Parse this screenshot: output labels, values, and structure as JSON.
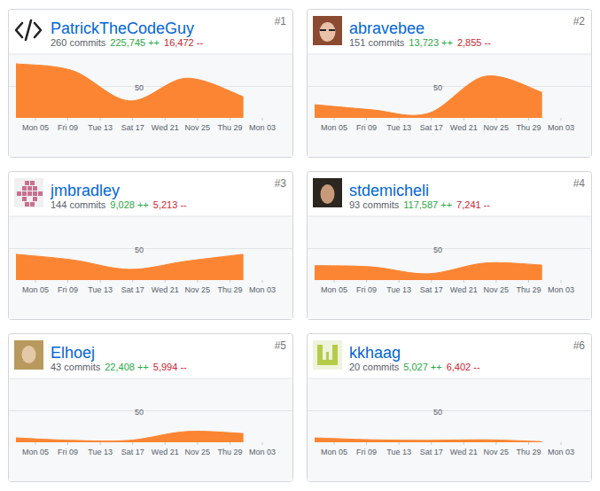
{
  "chart_data": [
    {
      "type": "area",
      "title": "PatrickTheCodeGuy",
      "rank": {
        "value": 1,
        "label": "#1"
      },
      "stats": [
        {
          "value": 260,
          "label": "260 commits"
        },
        {
          "value": 225745,
          "label": "225,745 ++"
        },
        {
          "value": 16472,
          "label": "16,472 --"
        }
      ],
      "color": "#fb8532",
      "x": [
        -2.4,
        4.6,
        11.6,
        18.6,
        25.6
      ],
      "values": [
        86,
        75,
        27,
        63,
        34
      ],
      "xlim": [
        -2.4,
        30.4
      ],
      "xticks": [
        {
          "value": 0,
          "label": "Mon 05"
        },
        {
          "value": 4,
          "label": "Fri 09"
        },
        {
          "value": 8,
          "label": "Tue 13"
        },
        {
          "value": 12,
          "label": "Sat 17"
        },
        {
          "value": 16,
          "label": "Wed 21"
        },
        {
          "value": 20,
          "label": "Nov 25"
        },
        {
          "value": 24,
          "label": "Thu 29"
        },
        {
          "value": 28,
          "label": "Mon 03"
        }
      ],
      "ylim": [
        0,
        100
      ],
      "yticks": [
        50
      ],
      "grid": true
    },
    {
      "type": "area",
      "title": "abravebee",
      "rank": {
        "value": 2,
        "label": "#2"
      },
      "stats": [
        {
          "value": 151,
          "label": "151 commits"
        },
        {
          "value": 13723,
          "label": "13,723 ++"
        },
        {
          "value": 2855,
          "label": "2,855 --"
        }
      ],
      "color": "#fb8532",
      "x": [
        -2.4,
        4.6,
        11.6,
        18.6,
        25.6
      ],
      "values": [
        21,
        13,
        7,
        66,
        41
      ],
      "xlim": [
        -2.4,
        30.4
      ],
      "xticks": [
        {
          "value": 0,
          "label": "Mon 05"
        },
        {
          "value": 4,
          "label": "Fri 09"
        },
        {
          "value": 8,
          "label": "Tue 13"
        },
        {
          "value": 12,
          "label": "Sat 17"
        },
        {
          "value": 16,
          "label": "Wed 21"
        },
        {
          "value": 20,
          "label": "Nov 25"
        },
        {
          "value": 24,
          "label": "Thu 29"
        },
        {
          "value": 28,
          "label": "Mon 03"
        }
      ],
      "ylim": [
        0,
        100
      ],
      "yticks": [
        50
      ],
      "grid": true
    },
    {
      "type": "area",
      "title": "jmbradley",
      "rank": {
        "value": 3,
        "label": "#3"
      },
      "stats": [
        {
          "value": 144,
          "label": "144 commits"
        },
        {
          "value": 9028,
          "label": "9,028 ++"
        },
        {
          "value": 5213,
          "label": "5,213 --"
        }
      ],
      "color": "#fb8532",
      "x": [
        -2.4,
        4.6,
        11.6,
        18.6,
        25.6
      ],
      "values": [
        41,
        32,
        17,
        30,
        41
      ],
      "xlim": [
        -2.4,
        30.4
      ],
      "xticks": [
        {
          "value": 0,
          "label": "Mon 05"
        },
        {
          "value": 4,
          "label": "Fri 09"
        },
        {
          "value": 8,
          "label": "Tue 13"
        },
        {
          "value": 12,
          "label": "Sat 17"
        },
        {
          "value": 16,
          "label": "Wed 21"
        },
        {
          "value": 20,
          "label": "Nov 25"
        },
        {
          "value": 24,
          "label": "Thu 29"
        },
        {
          "value": 28,
          "label": "Mon 03"
        }
      ],
      "ylim": [
        0,
        100
      ],
      "yticks": [
        50
      ],
      "grid": true
    },
    {
      "type": "area",
      "title": "stdemicheli",
      "rank": {
        "value": 4,
        "label": "#4"
      },
      "stats": [
        {
          "value": 93,
          "label": "93 commits"
        },
        {
          "value": 117587,
          "label": "117,587 ++"
        },
        {
          "value": 7241,
          "label": "7,241 --"
        }
      ],
      "color": "#fb8532",
      "x": [
        -2.4,
        4.6,
        11.6,
        18.6,
        25.6
      ],
      "values": [
        23,
        21,
        10,
        27,
        24
      ],
      "xlim": [
        -2.4,
        30.4
      ],
      "xticks": [
        {
          "value": 0,
          "label": "Mon 05"
        },
        {
          "value": 4,
          "label": "Fri 09"
        },
        {
          "value": 8,
          "label": "Tue 13"
        },
        {
          "value": 12,
          "label": "Sat 17"
        },
        {
          "value": 16,
          "label": "Wed 21"
        },
        {
          "value": 20,
          "label": "Nov 25"
        },
        {
          "value": 24,
          "label": "Thu 29"
        },
        {
          "value": 28,
          "label": "Mon 03"
        }
      ],
      "ylim": [
        0,
        100
      ],
      "yticks": [
        50
      ],
      "grid": true
    },
    {
      "type": "area",
      "title": "Elhoej",
      "rank": {
        "value": 5,
        "label": "#5"
      },
      "stats": [
        {
          "value": 43,
          "label": "43 commits"
        },
        {
          "value": 22408,
          "label": "22,408 ++"
        },
        {
          "value": 5994,
          "label": "5,994 --"
        }
      ],
      "color": "#fb8532",
      "x": [
        -2.4,
        4.6,
        11.6,
        18.6,
        25.6
      ],
      "values": [
        7,
        3,
        3,
        17,
        14
      ],
      "xlim": [
        -2.4,
        30.4
      ],
      "xticks": [
        {
          "value": 0,
          "label": "Mon 05"
        },
        {
          "value": 4,
          "label": "Fri 09"
        },
        {
          "value": 8,
          "label": "Tue 13"
        },
        {
          "value": 12,
          "label": "Sat 17"
        },
        {
          "value": 16,
          "label": "Wed 21"
        },
        {
          "value": 20,
          "label": "Nov 25"
        },
        {
          "value": 24,
          "label": "Thu 29"
        },
        {
          "value": 28,
          "label": "Mon 03"
        }
      ],
      "ylim": [
        0,
        100
      ],
      "yticks": [
        50
      ],
      "grid": true
    },
    {
      "type": "area",
      "title": "kkhaag",
      "rank": {
        "value": 6,
        "label": "#6"
      },
      "stats": [
        {
          "value": 20,
          "label": "20 commits"
        },
        {
          "value": 5027,
          "label": "5,027 ++"
        },
        {
          "value": 6402,
          "label": "6,402 --"
        }
      ],
      "color": "#fb8532",
      "x": [
        -2.4,
        4.6,
        11.6,
        18.6,
        25.6
      ],
      "values": [
        7,
        4,
        3,
        4,
        1
      ],
      "xlim": [
        -2.4,
        30.4
      ],
      "xticks": [
        {
          "value": 0,
          "label": "Mon 05"
        },
        {
          "value": 4,
          "label": "Fri 09"
        },
        {
          "value": 8,
          "label": "Tue 13"
        },
        {
          "value": 12,
          "label": "Sat 17"
        },
        {
          "value": 16,
          "label": "Wed 21"
        },
        {
          "value": 20,
          "label": "Nov 25"
        },
        {
          "value": 24,
          "label": "Thu 29"
        },
        {
          "value": 28,
          "label": "Mon 03"
        }
      ],
      "ylim": [
        0,
        100
      ],
      "yticks": [
        50
      ],
      "grid": true
    }
  ]
}
